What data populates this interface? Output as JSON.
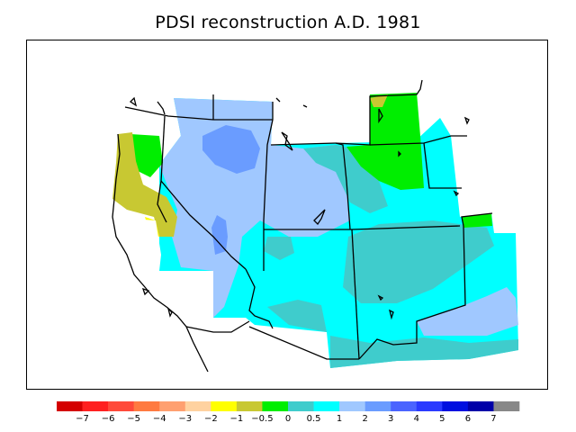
{
  "title": "PDSI reconstruction A.D. 1981",
  "legend": {
    "colors": [
      "#d40000",
      "#ff2020",
      "#ff4a3a",
      "#ff7a40",
      "#ffa070",
      "#ffd2a0",
      "#ffff00",
      "#c8c832",
      "#00ee00",
      "#3fcccc",
      "#00ffff",
      "#a0c8ff",
      "#6a9cff",
      "#4a64ff",
      "#2a3aff",
      "#0010e0",
      "#0000a8",
      "#888888"
    ],
    "labels": [
      "−7",
      "−6",
      "−5",
      "−4",
      "−3",
      "−2",
      "−1",
      "−0.5",
      "0",
      "0.5",
      "1",
      "2",
      "3",
      "4",
      "5",
      "6",
      "7"
    ]
  },
  "map_colors": {
    "dry_moderate": "#c8c832",
    "near_normal": "#00ee00",
    "slightly_wet": "#3fcccc",
    "wet": "#00ffff",
    "wetter": "#a0c8ff",
    "very_wet": "#6a9cff",
    "tan": "#d4a040",
    "yellow": "#ffff00"
  }
}
